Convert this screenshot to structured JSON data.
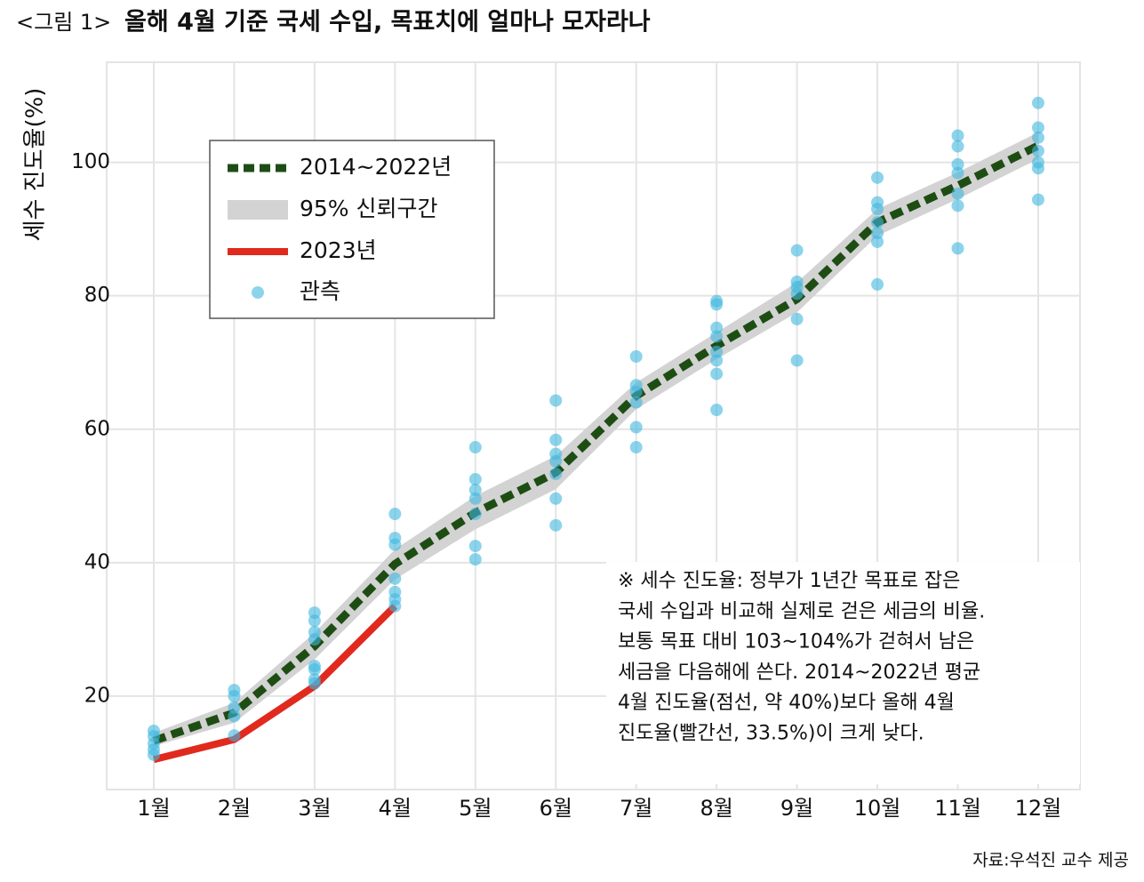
{
  "chart_data": {
    "type": "line",
    "figure_label": "<그림 1>",
    "title": "올해 4월 기준 국세 수입, 목표치에 얼마나 모자라나",
    "y_label": "세수 진도율(%)",
    "categories": [
      "1월",
      "2월",
      "3월",
      "4월",
      "5월",
      "6월",
      "7월",
      "8월",
      "9월",
      "10월",
      "11월",
      "12월"
    ],
    "ylim": [
      6,
      115
    ],
    "yticks": [
      20,
      40,
      60,
      80,
      100
    ],
    "grid": true,
    "legend_position": "upper left",
    "series": [
      {
        "name": "2014~2022년",
        "color": "#1e4d14",
        "dash": true,
        "values": [
          13.3,
          17.5,
          27.5,
          39.8,
          47.5,
          53.5,
          65,
          72.5,
          79.5,
          91,
          96.5,
          102.5
        ]
      },
      {
        "name": "2023년",
        "color": "#e02a1e",
        "values": [
          10.5,
          13.5,
          21.5,
          33.5,
          null,
          null,
          null,
          null,
          null,
          null,
          null,
          null
        ]
      }
    ],
    "band": {
      "name": "95% 신뢰구간",
      "color": "#d3d3d3",
      "lower": [
        12.5,
        16,
        25.5,
        37.5,
        45,
        51,
        63,
        70.5,
        77.5,
        89,
        94.5,
        100.5
      ],
      "upper": [
        14.5,
        19,
        29.5,
        42,
        50,
        56,
        67,
        74.5,
        82,
        93,
        98.5,
        104.5
      ]
    },
    "observations": {
      "name": "관측",
      "color": "#3fb8e0",
      "values": [
        [
          14.8,
          14,
          12.9,
          12,
          11.2
        ],
        [
          20.9,
          20,
          18.3,
          17,
          14.1
        ],
        [
          32.5,
          31.3,
          29.6,
          28.5,
          24.5,
          24,
          22.5,
          21.9
        ],
        [
          47.3,
          43.7,
          42.7,
          37.6,
          35.6,
          34.5,
          33.5
        ],
        [
          57.3,
          52.5,
          50.9,
          49.6,
          47.3,
          42.5,
          40.5
        ],
        [
          64.3,
          58.4,
          56.3,
          55.2,
          53.3,
          49.6,
          45.6
        ],
        [
          70.9,
          66.6,
          65.6,
          64,
          60.3,
          57.3
        ],
        [
          79.2,
          78.7,
          75.2,
          73.9,
          71.6,
          70.3,
          68.3,
          62.9
        ],
        [
          86.8,
          82.1,
          81.3,
          80.3,
          76.5,
          70.3
        ],
        [
          97.7,
          94,
          93,
          91,
          89.4,
          88.1,
          81.7
        ],
        [
          104,
          102.4,
          99.7,
          98.4,
          95.3,
          93.5,
          87.1
        ],
        [
          108.9,
          105.2,
          103.7,
          101.7,
          100,
          99.1,
          94.4
        ]
      ]
    },
    "note": [
      "※ 세수 진도율: 정부가 1년간 목표로 잡은",
      "국세 수입과 비교해 실제로 걷은 세금의 비율.",
      "보통 목표 대비 103~104%가 걷혀서 남은",
      "세금을 다음해에 쓴다. 2014~2022년 평균",
      "4월 진도율(점선, 약 40%)보다 올해 4월",
      "진도율(빨간선, 33.5%)이 크게 낮다."
    ],
    "source": "자료:우석진 교수 제공"
  }
}
